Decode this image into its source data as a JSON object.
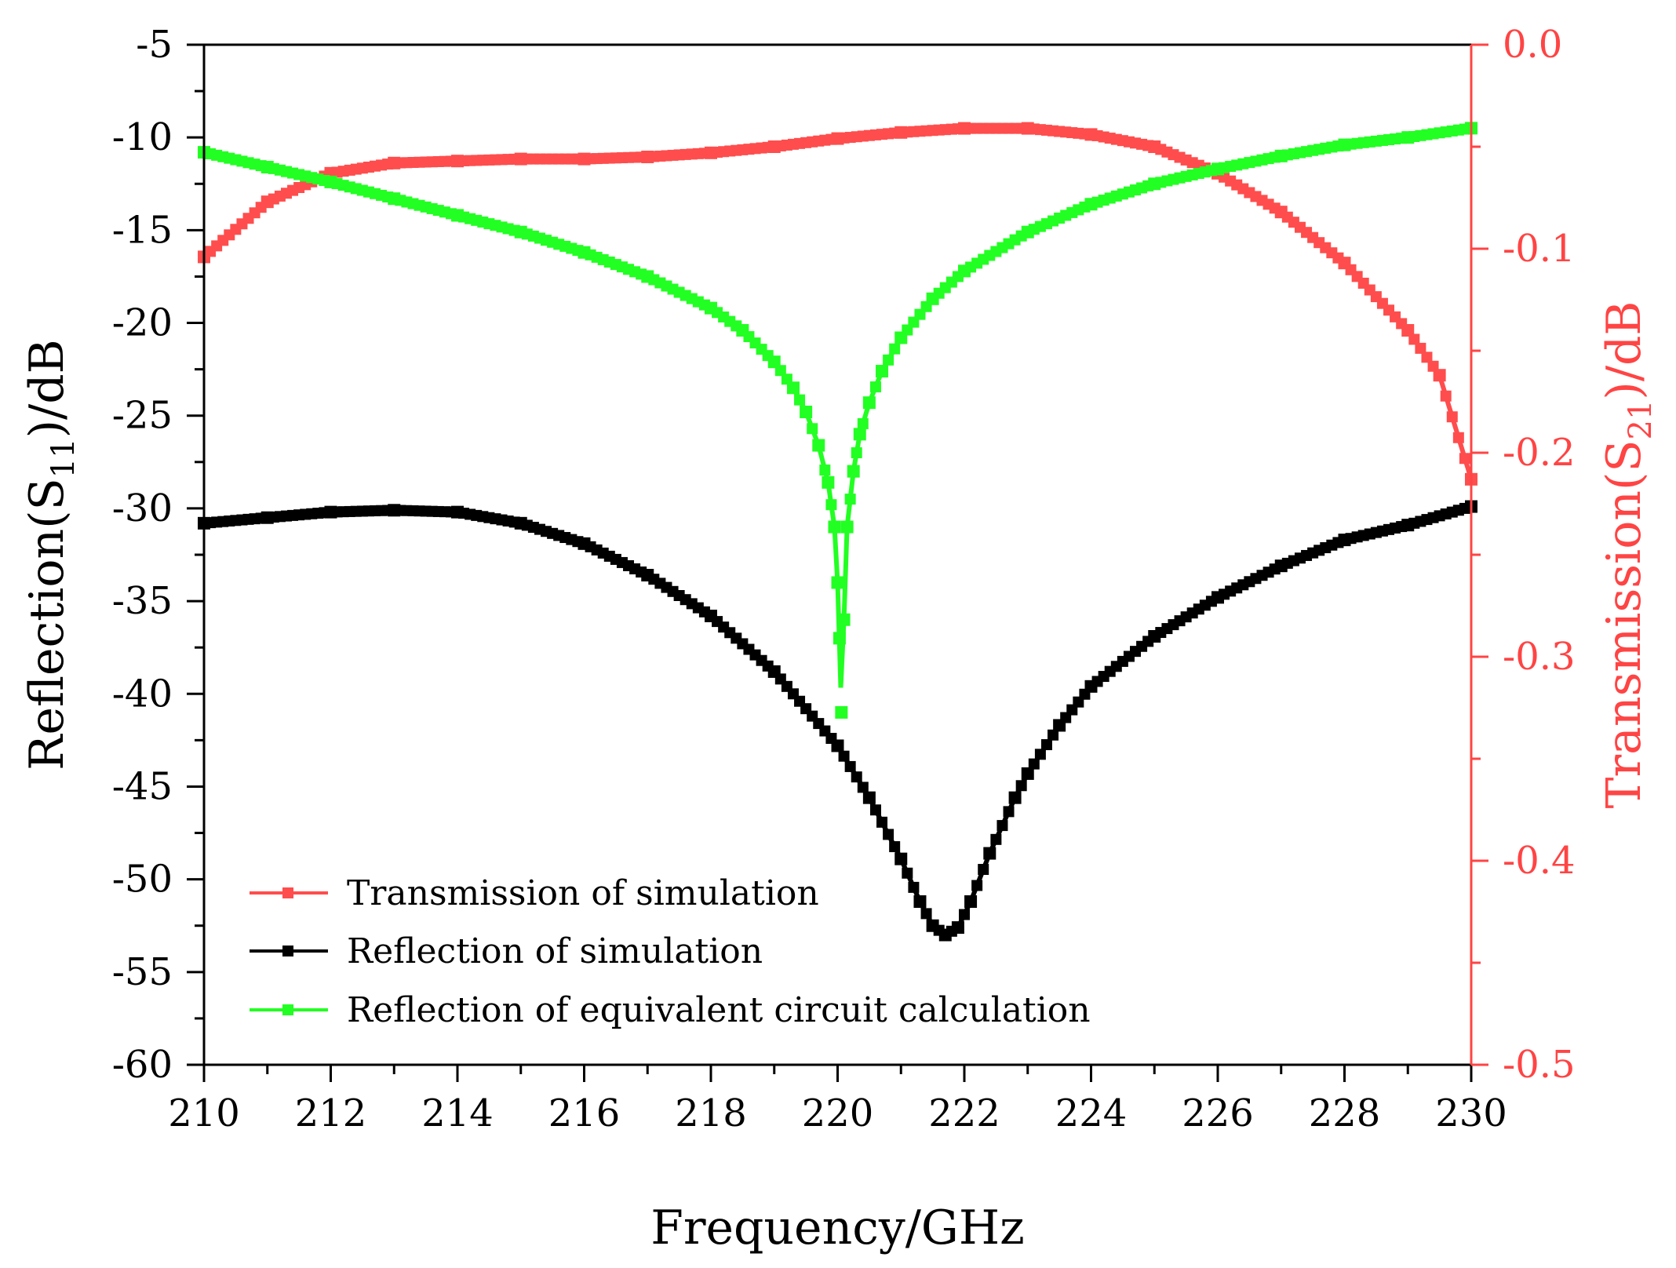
{
  "chart_data": {
    "type": "line",
    "title": "",
    "xlabel": "Frequency/GHz",
    "x_ticks": [
      "210",
      "212",
      "214",
      "216",
      "218",
      "220",
      "222",
      "224",
      "226",
      "228",
      "230"
    ],
    "xlim": [
      210,
      230
    ],
    "y_left": {
      "label_prefix": "Reflection(S",
      "label_sub": "11",
      "label_suffix": ")/dB",
      "ylim": [
        -60,
        -5
      ],
      "ticks": [
        "-5",
        "-10",
        "-15",
        "-20",
        "-25",
        "-30",
        "-35",
        "-40",
        "-45",
        "-50",
        "-55",
        "-60"
      ],
      "color": "#000000"
    },
    "y_right": {
      "label_prefix": "Transmission(S",
      "label_sub": "21",
      "label_suffix": ")/dB",
      "ylim": [
        -0.5,
        0.0
      ],
      "ticks": [
        "0.0",
        "-0.1",
        "-0.2",
        "-0.3",
        "-0.4",
        "-0.5"
      ],
      "color": "#ff4444"
    },
    "series": [
      {
        "name": "Transmission of simulation",
        "axis": "right",
        "color": "#ff4d4d",
        "x": [
          210,
          211,
          212,
          213,
          214,
          215,
          216,
          217,
          218,
          219,
          220,
          221,
          222,
          223,
          224,
          225,
          226,
          227,
          228,
          229,
          229.5,
          230
        ],
        "y": [
          -0.104,
          -0.077,
          -0.063,
          -0.058,
          -0.057,
          -0.056,
          -0.056,
          -0.055,
          -0.053,
          -0.05,
          -0.046,
          -0.043,
          -0.041,
          -0.041,
          -0.044,
          -0.05,
          -0.063,
          -0.082,
          -0.107,
          -0.14,
          -0.162,
          -0.213
        ]
      },
      {
        "name": "Reflection of simulation",
        "axis": "left",
        "color": "#000000",
        "x": [
          210,
          211,
          212,
          213,
          214,
          215,
          216,
          217,
          218,
          219,
          220,
          220.5,
          221,
          221.3,
          221.5,
          221.7,
          221.9,
          222.1,
          222.4,
          222.8,
          223,
          223.5,
          224,
          225,
          226,
          227,
          228,
          229,
          230
        ],
        "y": [
          -30.8,
          -30.5,
          -30.2,
          -30.1,
          -30.2,
          -30.8,
          -31.9,
          -33.6,
          -35.8,
          -38.8,
          -42.8,
          -45.6,
          -48.9,
          -51.2,
          -52.5,
          -53.0,
          -52.6,
          -51.2,
          -48.6,
          -45.6,
          -44.3,
          -41.7,
          -39.6,
          -36.9,
          -34.8,
          -33.1,
          -31.7,
          -30.9,
          -29.9
        ]
      },
      {
        "name": "Reflection of  equivalent circuit calculation",
        "axis": "left",
        "color": "#22ff22",
        "x": [
          210,
          211,
          212,
          213,
          214,
          215,
          216,
          217,
          218,
          218.5,
          219,
          219.3,
          219.5,
          219.7,
          219.85,
          219.95,
          220.0,
          220.03,
          220.06,
          220.1,
          220.15,
          220.25,
          220.35,
          220.5,
          220.7,
          221,
          221.5,
          222,
          223,
          224,
          225,
          226,
          227,
          228,
          229,
          230
        ],
        "y": [
          -10.8,
          -11.6,
          -12.4,
          -13.3,
          -14.2,
          -15.1,
          -16.2,
          -17.5,
          -19.2,
          -20.4,
          -22.1,
          -23.5,
          -24.8,
          -26.6,
          -28.6,
          -31.0,
          -34.0,
          -37.0,
          -41.0,
          -36.0,
          -31.0,
          -28.0,
          -26.0,
          -24.3,
          -22.6,
          -20.8,
          -18.7,
          -17.2,
          -15.1,
          -13.6,
          -12.5,
          -11.7,
          -11.0,
          -10.4,
          -10.0,
          -9.5
        ]
      }
    ],
    "legend_position": "bottom-left",
    "grid": false
  }
}
